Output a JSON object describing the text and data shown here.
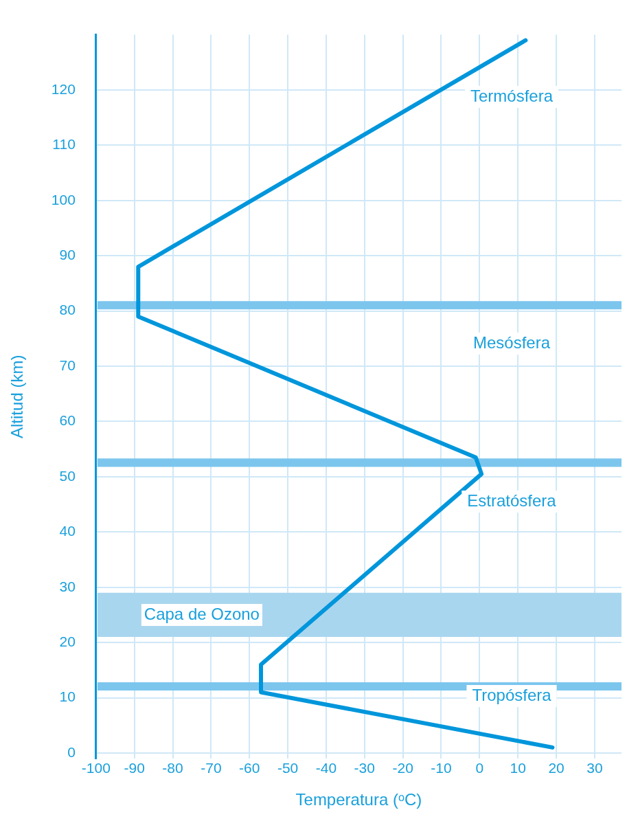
{
  "chart_data": {
    "type": "line",
    "xlabel": "Temperatura (ᵒC)",
    "ylabel": "Altitud (km)",
    "x": [
      19,
      -57,
      -57,
      0.5,
      -1,
      -89,
      -89,
      12
    ],
    "series": [
      {
        "color": "#0096db",
        "values": [
          1,
          11,
          16,
          50.5,
          53.5,
          79,
          88,
          129
        ]
      }
    ],
    "xlim": [
      -100,
      37
    ],
    "xticks": [
      -100,
      -90,
      -80,
      -70,
      -60,
      -50,
      -40,
      -30,
      -20,
      -10,
      0,
      10,
      20,
      30
    ],
    "ylim": [
      -1,
      130
    ],
    "yticks": [
      0,
      10,
      20,
      30,
      40,
      50,
      60,
      70,
      80,
      90,
      100,
      110,
      120
    ],
    "grid": true,
    "legend": false,
    "marker": "none",
    "line_style": "solid",
    "bands": [
      {
        "axis": "y",
        "from": 80.3,
        "to": 81.8,
        "color": "#7cc6ee"
      },
      {
        "axis": "y",
        "from": 51.8,
        "to": 53.3,
        "color": "#7cc6ee"
      },
      {
        "axis": "y",
        "from": 11.3,
        "to": 12.8,
        "color": "#7cc6ee"
      },
      {
        "axis": "y",
        "from": 21,
        "to": 29,
        "label": "Capa de Ozono",
        "color": "#a9d6ef"
      }
    ],
    "annotations": [
      "Termósfera",
      "Mesósfera",
      "Estratósfera",
      "Tropósfera"
    ]
  }
}
